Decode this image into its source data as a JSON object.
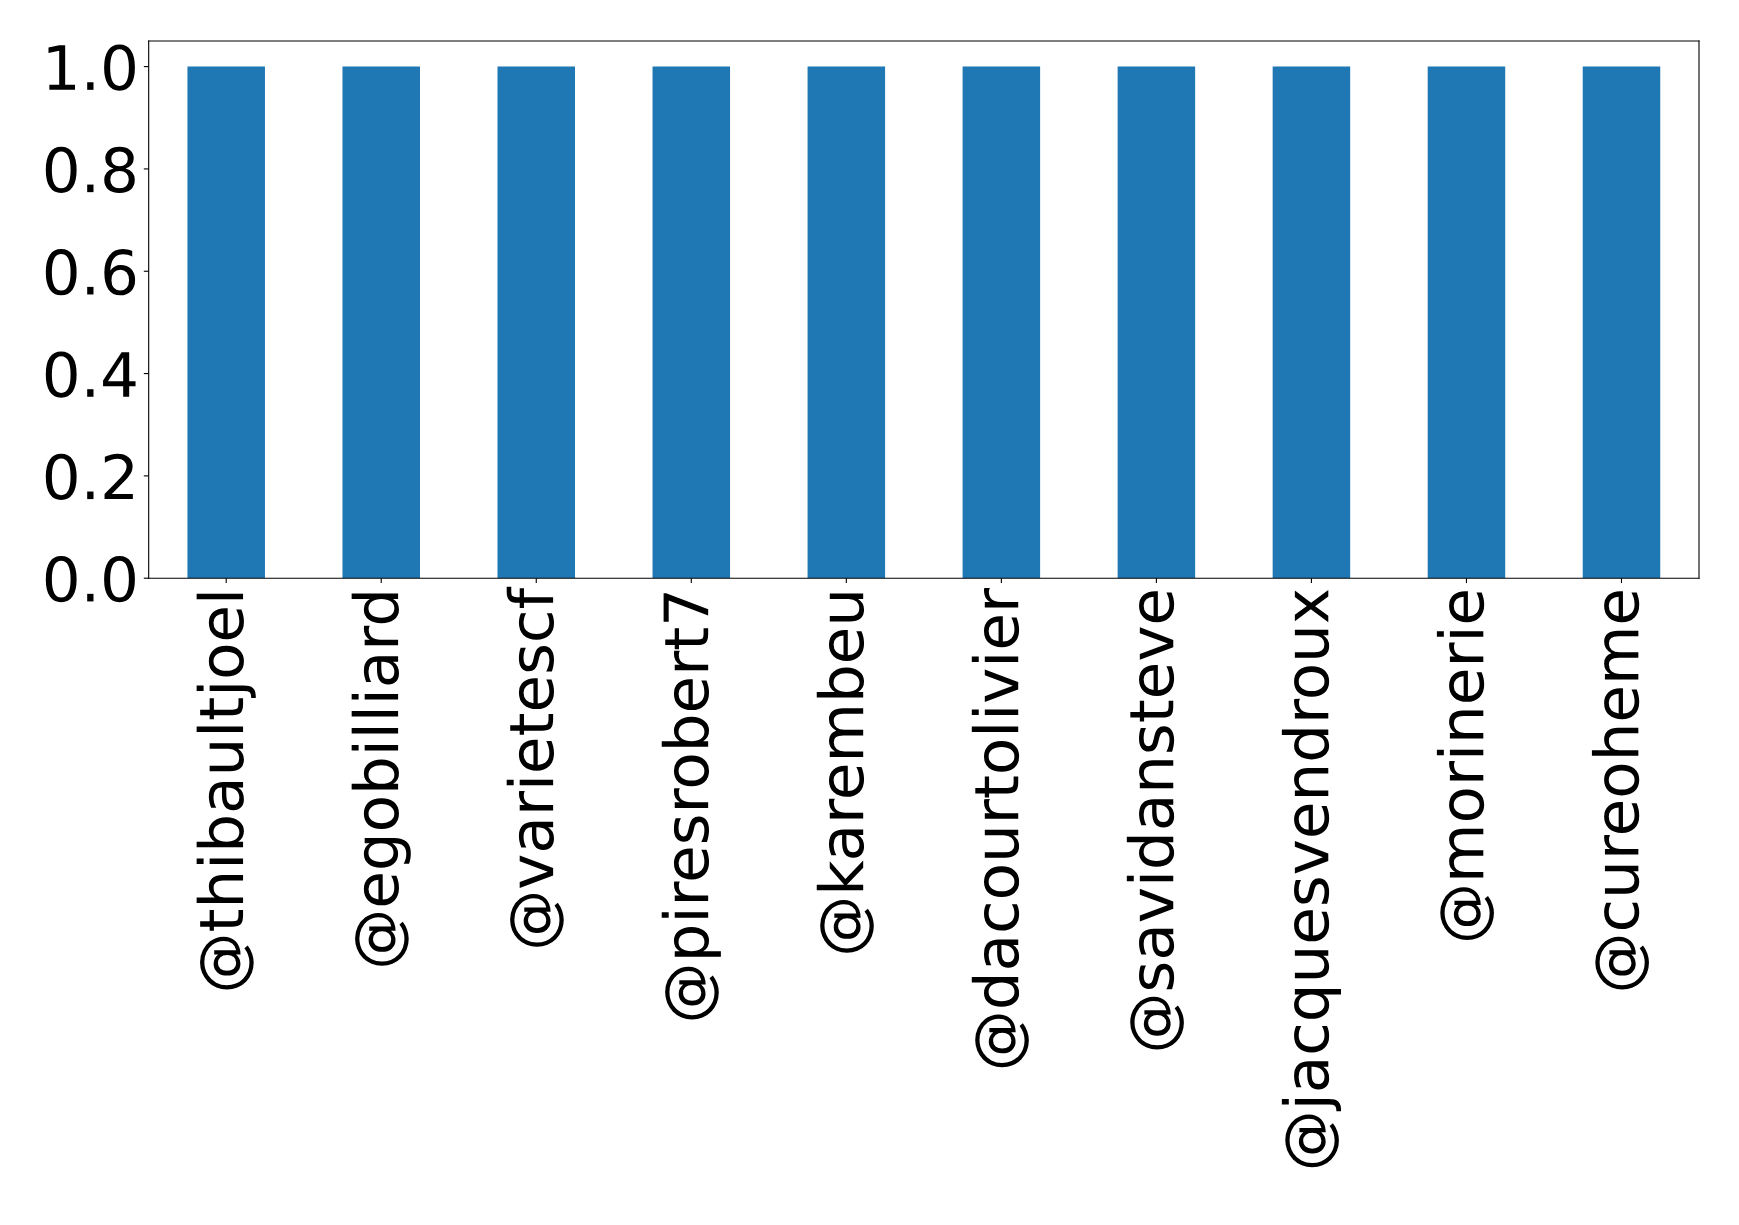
{
  "chart_data": {
    "type": "bar",
    "categories": [
      "@thibaultjoel",
      "@egobilliard",
      "@varietescf",
      "@piresrobert7",
      "@karembeu",
      "@dacourtolivier",
      "@savidansteve",
      "@jacquesvendroux",
      "@morinerie",
      "@cureoheme"
    ],
    "values": [
      1,
      1,
      1,
      1,
      1,
      1,
      1,
      1,
      1,
      1
    ],
    "color": "#1f77b4",
    "ylim": [
      0,
      1.05
    ],
    "yticks": [
      {
        "value": 0,
        "label": "0.0"
      },
      {
        "value": 0.2,
        "label": "0.2"
      },
      {
        "value": 0.4,
        "label": "0.4"
      },
      {
        "value": 0.6,
        "label": "0.6"
      },
      {
        "value": 0.8,
        "label": "0.8"
      },
      {
        "value": 1,
        "label": "1.0"
      }
    ],
    "grid": false,
    "legend": false
  }
}
